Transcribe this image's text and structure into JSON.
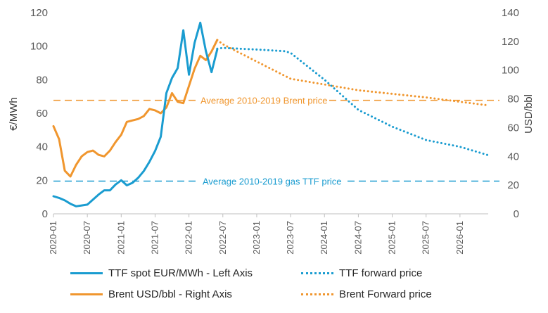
{
  "chart_data": {
    "type": "line",
    "left_axis": {
      "label": "€/MWh",
      "ylim": [
        0,
        120
      ],
      "ticks": [
        "0",
        "20",
        "40",
        "60",
        "80",
        "100",
        "120"
      ]
    },
    "right_axis": {
      "label": "USD/bbl",
      "ylim": [
        0,
        140
      ],
      "ticks": [
        "0",
        "20",
        "40",
        "60",
        "80",
        "100",
        "120",
        "140"
      ]
    },
    "x_ticks": [
      "2020-01",
      "2020-07",
      "2021-01",
      "2021-07",
      "2022-01",
      "2022-07",
      "2023-01",
      "2023-07",
      "2024-01",
      "2024-07",
      "2025-01",
      "2025-07",
      "2026-01"
    ],
    "x_range": [
      "2020-01",
      "2026-06"
    ],
    "grid": false,
    "legend_position": "bottom",
    "series": [
      {
        "name": "TTF spot EUR/MWh - Left Axis",
        "axis": "left",
        "style": "solid",
        "color": "#1a9cd0",
        "x": [
          "2020-01",
          "2020-02",
          "2020-03",
          "2020-04",
          "2020-05",
          "2020-06",
          "2020-07",
          "2020-08",
          "2020-09",
          "2020-10",
          "2020-11",
          "2020-12",
          "2021-01",
          "2021-02",
          "2021-03",
          "2021-04",
          "2021-05",
          "2021-06",
          "2021-07",
          "2021-08",
          "2021-09",
          "2021-10",
          "2021-11",
          "2021-12",
          "2022-01",
          "2022-02",
          "2022-03",
          "2022-04",
          "2022-05",
          "2022-06"
        ],
        "y": [
          10.5,
          9.5,
          8,
          6,
          4.5,
          5,
          5.5,
          8.5,
          11.5,
          14,
          14,
          17.5,
          20,
          17,
          18.5,
          21.5,
          25.5,
          31,
          37.5,
          46,
          72,
          81,
          87,
          109.5,
          83,
          102,
          114,
          97,
          84.5,
          98
        ]
      },
      {
        "name": "TTF forward price",
        "axis": "left",
        "style": "dotted",
        "color": "#1a9cd0",
        "x": [
          "2022-06",
          "2022-07",
          "2023-01",
          "2023-06",
          "2023-07",
          "2024-01",
          "2024-07",
          "2025-01",
          "2025-07",
          "2026-01",
          "2026-06"
        ],
        "y": [
          98.5,
          99,
          98,
          97,
          96,
          80,
          62,
          52,
          44,
          40,
          35
        ]
      },
      {
        "name": "Brent USD/bbl - Right Axis",
        "axis": "right",
        "style": "solid",
        "color": "#f0962e",
        "x": [
          "2020-01",
          "2020-02",
          "2020-03",
          "2020-04",
          "2020-05",
          "2020-06",
          "2020-07",
          "2020-08",
          "2020-09",
          "2020-10",
          "2020-11",
          "2020-12",
          "2021-01",
          "2021-02",
          "2021-03",
          "2021-04",
          "2021-05",
          "2021-06",
          "2021-07",
          "2021-08",
          "2021-09",
          "2021-10",
          "2021-11",
          "2021-12",
          "2022-01",
          "2022-02",
          "2022-03",
          "2022-04",
          "2022-05",
          "2022-06"
        ],
        "y": [
          61,
          52,
          30,
          26,
          34,
          40,
          43,
          44,
          41,
          40,
          44,
          50,
          55,
          64,
          65,
          66,
          68,
          73,
          72,
          70,
          74,
          84,
          78,
          77,
          89,
          101,
          110,
          107,
          113,
          121
        ]
      },
      {
        "name": "Brent Forward price",
        "axis": "right",
        "style": "dotted",
        "color": "#f0962e",
        "x": [
          "2022-06",
          "2022-07",
          "2023-01",
          "2023-07",
          "2024-01",
          "2024-07",
          "2025-01",
          "2025-07",
          "2026-01",
          "2026-06"
        ],
        "y": [
          121,
          118,
          106,
          94,
          90,
          86,
          83.5,
          81,
          78,
          75.5
        ]
      }
    ],
    "reference_lines": [
      {
        "label": "Average 2010-2019 Brent price",
        "axis": "right",
        "value": 79,
        "color": "#f0962e"
      },
      {
        "label": "Average 2010-2019 gas TTF price",
        "axis": "left",
        "value": 19.5,
        "color": "#1a9cd0"
      }
    ]
  }
}
